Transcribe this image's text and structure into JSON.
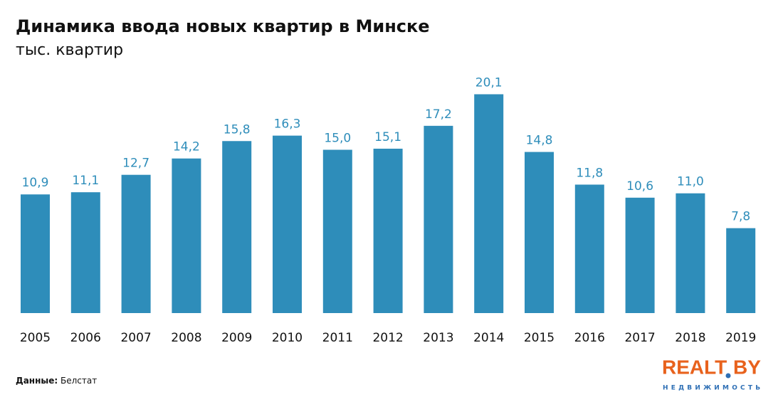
{
  "chart_data": {
    "type": "bar",
    "title": "Динамика ввода новых квартир в Минске",
    "subtitle": "тыс. квартир",
    "categories": [
      "2005",
      "2006",
      "2007",
      "2008",
      "2009",
      "2010",
      "2011",
      "2012",
      "2013",
      "2014",
      "2015",
      "2016",
      "2017",
      "2018",
      "2019"
    ],
    "values": [
      10.9,
      11.1,
      12.7,
      14.2,
      15.8,
      16.3,
      15.0,
      15.1,
      17.2,
      20.1,
      14.8,
      11.8,
      10.6,
      11.0,
      7.8
    ],
    "value_labels": [
      "10,9",
      "11,1",
      "12,7",
      "14,2",
      "15,8",
      "16,3",
      "15,0",
      "15,1",
      "17,2",
      "20,1",
      "14,8",
      "11,8",
      "10,6",
      "11,0",
      "7,8"
    ],
    "color": "#2e8dba",
    "source_label": "Данные:",
    "source": "Белстат"
  },
  "logo": {
    "left": "REALT",
    "right": "BY",
    "tagline": "НЕДВИЖИМОСТЬ"
  }
}
